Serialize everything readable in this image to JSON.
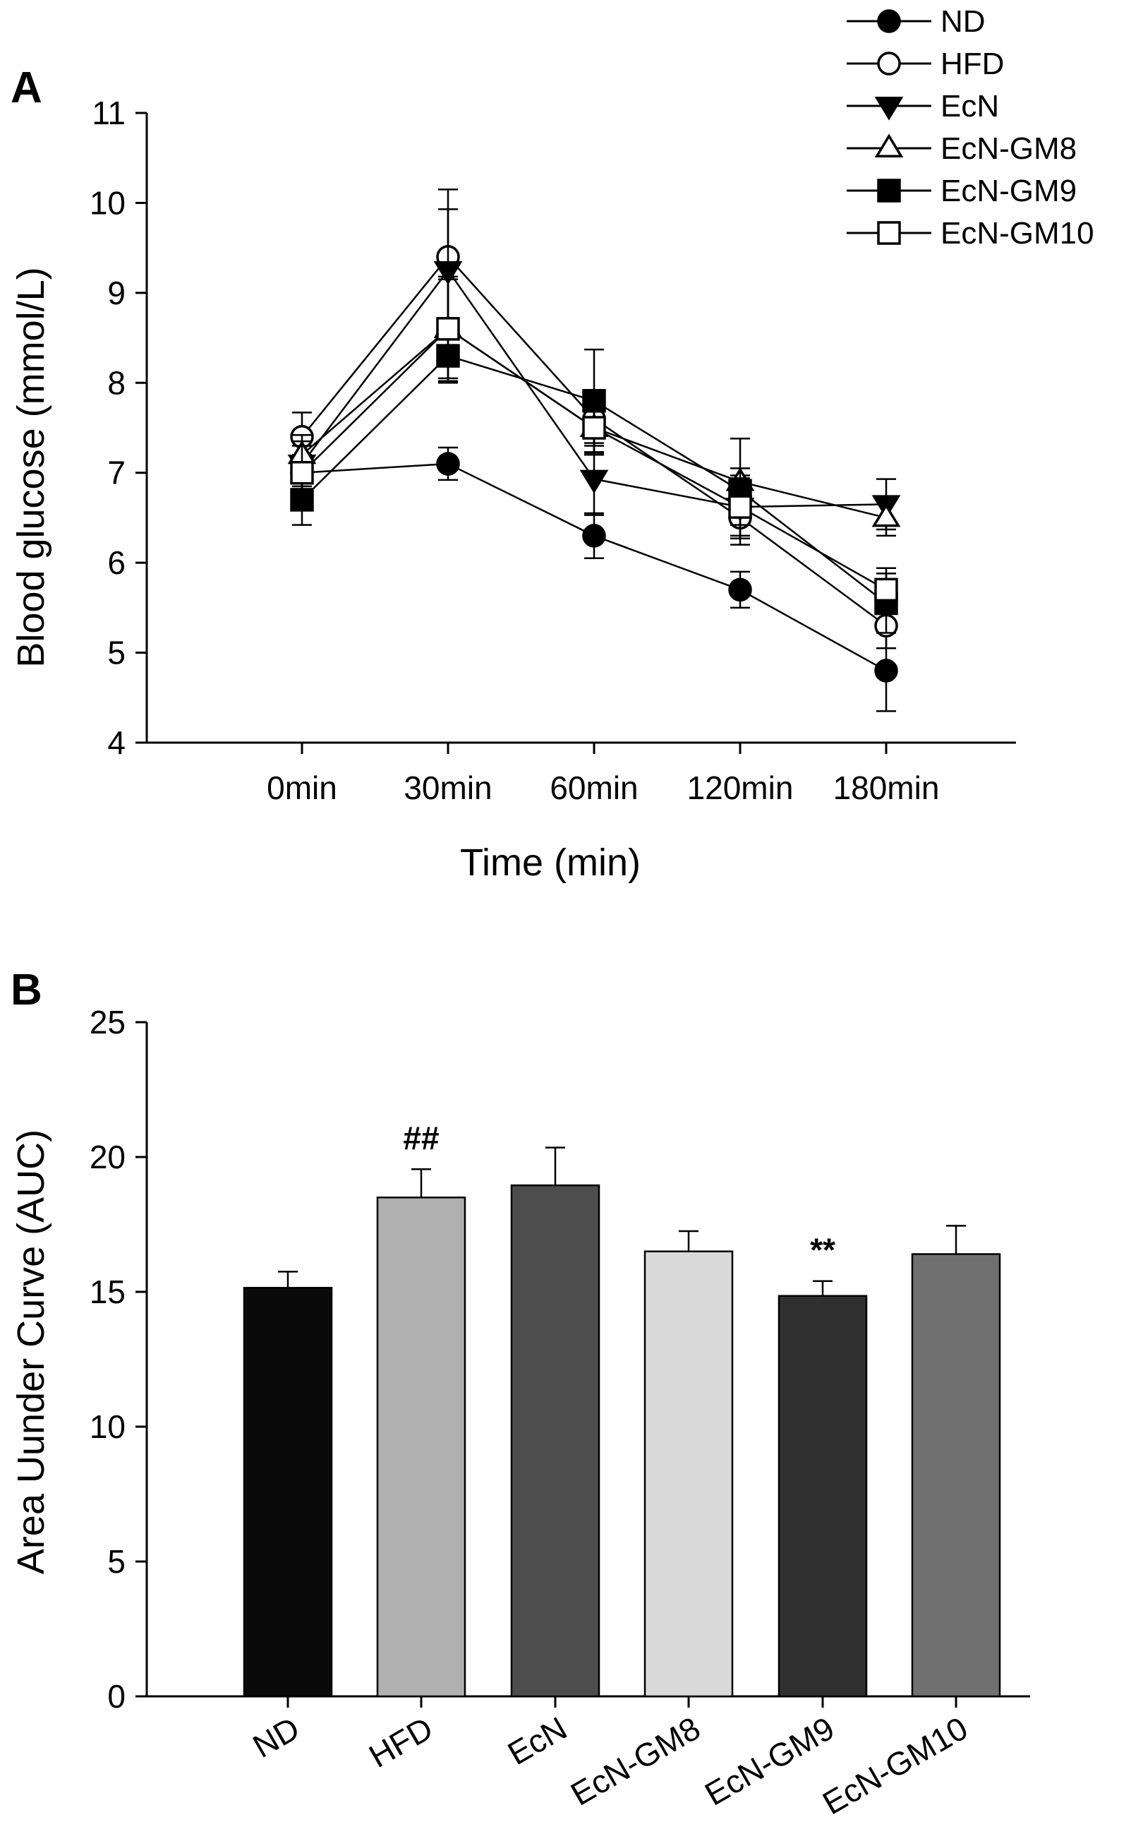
{
  "chart_data": [
    {
      "type": "line",
      "panel": "A",
      "xlabel": "Time (min)",
      "ylabel": "Blood glucose (mmol/L)",
      "ylim": [
        4,
        11
      ],
      "yticks": [
        "4",
        "5",
        "6",
        "7",
        "8",
        "9",
        "10",
        "11"
      ],
      "categories": [
        "0min",
        "30min",
        "60min",
        "120min",
        "180min"
      ],
      "legend_position": "top-right",
      "series": [
        {
          "name": "ND",
          "marker": "circle-filled",
          "values": [
            7.0,
            7.1,
            6.3,
            5.7,
            4.8
          ],
          "errors": [
            0.2,
            0.18,
            0.25,
            0.2,
            0.45
          ]
        },
        {
          "name": "HFD",
          "marker": "circle-open",
          "values": [
            7.4,
            9.4,
            7.6,
            6.5,
            5.3
          ],
          "errors": [
            0.27,
            0.75,
            0.3,
            0.3,
            0.25
          ]
        },
        {
          "name": "EcN",
          "marker": "triangle-down-filled",
          "values": [
            7.1,
            9.25,
            6.93,
            6.62,
            6.65
          ],
          "errors": [
            0.25,
            0.68,
            0.4,
            0.35,
            0.28
          ]
        },
        {
          "name": "EcN-GM8",
          "marker": "triangle-up-open",
          "values": [
            7.2,
            8.6,
            7.5,
            6.9,
            6.5
          ],
          "errors": [
            0.22,
            0.55,
            0.28,
            0.48,
            0.2
          ]
        },
        {
          "name": "EcN-GM9",
          "marker": "square-filled",
          "values": [
            6.7,
            8.3,
            7.8,
            6.8,
            5.55
          ],
          "errors": [
            0.28,
            0.3,
            0.57,
            0.25,
            0.33
          ]
        },
        {
          "name": "EcN-GM10",
          "marker": "square-open",
          "values": [
            7.0,
            8.6,
            7.5,
            6.62,
            5.7
          ],
          "errors": [
            0.3,
            0.58,
            0.3,
            0.32,
            0.24
          ]
        }
      ]
    },
    {
      "type": "bar",
      "panel": "B",
      "xlabel": "",
      "ylabel": "Area Uunder Curve (AUC)",
      "ylim": [
        0,
        25
      ],
      "yticks": [
        "0",
        "5",
        "10",
        "15",
        "20",
        "25"
      ],
      "categories": [
        "ND",
        "HFD",
        "EcN",
        "EcN-GM8",
        "EcN-GM9",
        "EcN-GM10"
      ],
      "values": [
        15.15,
        18.5,
        18.95,
        16.5,
        14.85,
        16.4
      ],
      "errors": [
        0.6,
        1.05,
        1.4,
        0.75,
        0.55,
        1.05
      ],
      "colors": [
        "#0a0a0a",
        "#b0b0b0",
        "#4d4d4d",
        "#d9d9d9",
        "#303030",
        "#707070"
      ],
      "annotations": [
        "",
        "##",
        "",
        "",
        "**",
        ""
      ]
    }
  ]
}
